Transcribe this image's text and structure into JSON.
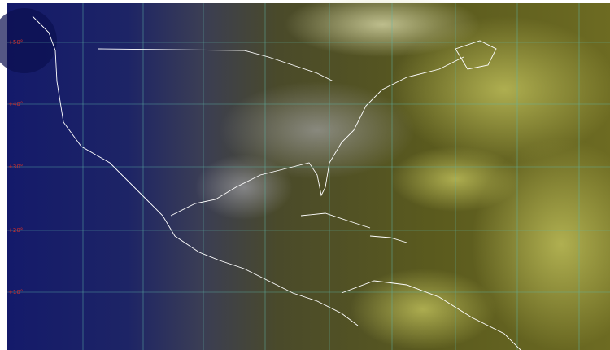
{
  "latitude_labels": [
    "+50°",
    "+40°",
    "+30°",
    "+20°",
    "+10°"
  ]
}
